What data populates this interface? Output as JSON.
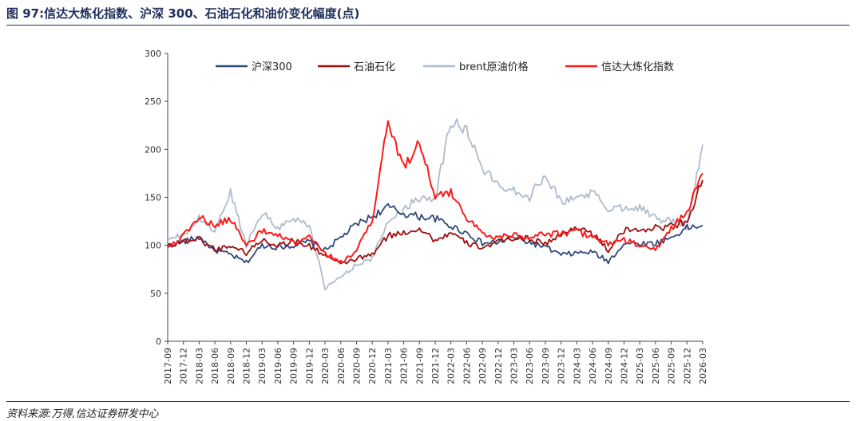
{
  "header": {
    "title": "图 97:信达大炼化指数、沪深 300、石油石化和油价变化幅度(点)"
  },
  "footer": {
    "source": "资料来源:万得,信达证券研发中心"
  },
  "chart_data": {
    "type": "line",
    "title": "图 97:信达大炼化指数、沪深 300、石油石化和油价变化幅度(点)",
    "xlabel": "",
    "ylabel": "",
    "ylim": [
      0,
      300
    ],
    "yticks": [
      0,
      50,
      100,
      150,
      200,
      250,
      300
    ],
    "grid": false,
    "legend_position": "top",
    "x_tick_labels": [
      "2017-09",
      "2017-12",
      "2018-03",
      "2018-06",
      "2018-09",
      "2018-12",
      "2019-03",
      "2019-06",
      "2019-09",
      "2019-12",
      "2020-03",
      "2020-06",
      "2020-09",
      "2020-12",
      "2021-03",
      "2021-06",
      "2021-09",
      "2021-12",
      "2022-03",
      "2022-06",
      "2022-09",
      "2022-12",
      "2023-03",
      "2023-06",
      "2023-09",
      "2023-12",
      "2024-03",
      "2024-06",
      "2024-09",
      "2024-12",
      "2025-03",
      "2025-06",
      "2025-09",
      "2025-12",
      "2026-03"
    ],
    "x": [
      "2017-09",
      "2017-12",
      "2018-03",
      "2018-06",
      "2018-09",
      "2018-12",
      "2019-03",
      "2019-06",
      "2019-09",
      "2019-12",
      "2020-03",
      "2020-06",
      "2020-09",
      "2020-12",
      "2021-03",
      "2021-06",
      "2021-09",
      "2021-12",
      "2022-03",
      "2022-06",
      "2022-09",
      "2022-12",
      "2023-03",
      "2023-06",
      "2023-09",
      "2023-12",
      "2024-03",
      "2024-06",
      "2024-09",
      "2024-12",
      "2025-03",
      "2025-06",
      "2025-09",
      "2025-12",
      "2026-03"
    ],
    "series": [
      {
        "name": "沪深300",
        "color": "#2e4a7d",
        "values": [
          100,
          104,
          108,
          95,
          90,
          82,
          100,
          98,
          100,
          104,
          95,
          108,
          122,
          130,
          140,
          133,
          130,
          128,
          120,
          113,
          102,
          103,
          108,
          103,
          98,
          90,
          92,
          93,
          83,
          102,
          102,
          102,
          108,
          118,
          121
        ]
      },
      {
        "name": "石油石化",
        "color": "#9e0d0d",
        "values": [
          100,
          104,
          107,
          95,
          100,
          92,
          106,
          100,
          105,
          99,
          90,
          80,
          86,
          90,
          110,
          113,
          118,
          105,
          113,
          102,
          98,
          103,
          108,
          107,
          102,
          110,
          120,
          112,
          95,
          115,
          117,
          118,
          120,
          125,
          168
        ]
      },
      {
        "name": "brent原油价格",
        "color": "#afbbcc",
        "values": [
          106,
          110,
          128,
          115,
          155,
          100,
          135,
          118,
          128,
          122,
          55,
          67,
          80,
          86,
          125,
          138,
          150,
          150,
          230,
          220,
          180,
          163,
          158,
          150,
          175,
          145,
          150,
          155,
          138,
          140,
          140,
          128,
          125,
          120,
          205
        ]
      },
      {
        "name": "信达大炼化指数",
        "color": "#ff1a1a",
        "values": [
          98,
          110,
          130,
          120,
          128,
          100,
          115,
          110,
          102,
          108,
          92,
          82,
          95,
          125,
          230,
          180,
          210,
          150,
          155,
          130,
          112,
          108,
          112,
          108,
          112,
          112,
          115,
          108,
          102,
          105,
          100,
          95,
          118,
          135,
          175
        ]
      }
    ]
  }
}
